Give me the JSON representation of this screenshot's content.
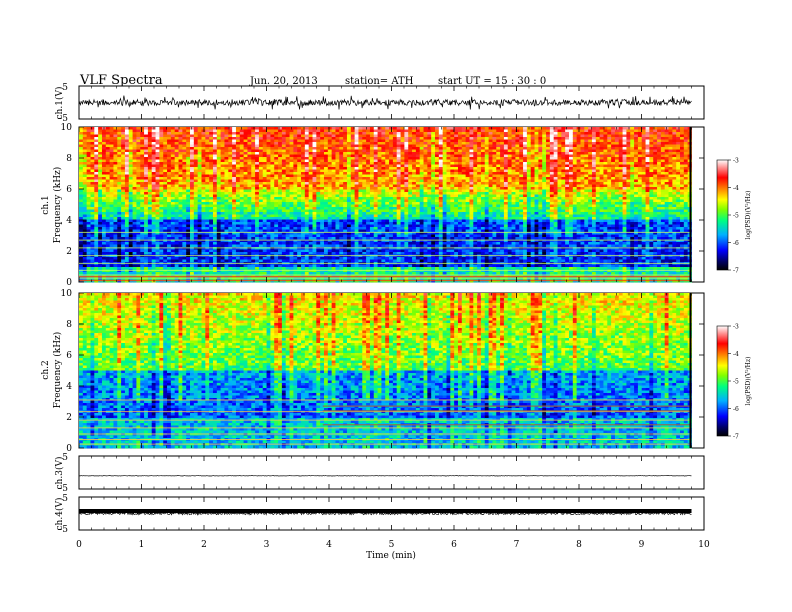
{
  "header": {
    "title": "VLF  Spectra",
    "date": "Jun. 20, 2013",
    "station": "station= ATH",
    "start": "start  UT  =    15 : 30 : 0"
  },
  "chart_data": [
    {
      "type": "line",
      "panel": "ch1-waveform",
      "ylabel": "ch.1(V)",
      "yticks": [
        "5",
        "-5"
      ],
      "ylim": [
        -5,
        5
      ],
      "xlim": [
        0,
        10
      ],
      "data_end_min": 9.8,
      "series": [
        {
          "values_estimate": "dense noise, roughly -2.5 to 2.5 V"
        }
      ]
    },
    {
      "type": "heatmap",
      "panel": "ch1-spectrogram",
      "ylabel_channel": "ch.1",
      "ylabel": "Frequency  (kHz)",
      "yticks": [
        "0",
        "2",
        "4",
        "6",
        "8",
        "10"
      ],
      "ylim": [
        0,
        10
      ],
      "xlim": [
        0,
        10
      ],
      "colorbar": {
        "label": "log(PSD)(V²/Hz)",
        "ticks": [
          "-3",
          "-4",
          "-5",
          "-6",
          "-7"
        ],
        "range": [
          -7,
          -3
        ]
      },
      "description_levels": {
        "0-1 kHz": -5.5,
        "1-4 kHz": -6.3,
        "4-6 kHz": -5.2,
        "6-10 kHz": -3.9
      }
    },
    {
      "type": "heatmap",
      "panel": "ch2-spectrogram",
      "ylabel_channel": "ch.2",
      "ylabel": "Frequency  (kHz)",
      "yticks": [
        "0",
        "2",
        "4",
        "6",
        "8",
        "10"
      ],
      "ylim": [
        0,
        10
      ],
      "xlim": [
        0,
        10
      ],
      "colorbar": {
        "label": "log(PSD)(V²/Hz)",
        "ticks": [
          "-3",
          "-4",
          "-5",
          "-6",
          "-7"
        ],
        "range": [
          -7,
          -3
        ]
      },
      "description_levels": {
        "0-2 kHz": -5.6,
        "2-5 kHz": -5.9,
        "5-10 kHz": -4.6
      }
    },
    {
      "type": "line",
      "panel": "ch3-waveform",
      "ylabel": "ch.3(V)",
      "yticks": [
        "5",
        "-5"
      ],
      "ylim": [
        -5,
        5
      ],
      "level": -1.0
    },
    {
      "type": "line",
      "panel": "ch4-waveform",
      "ylabel": "ch.4(V)",
      "yticks": [
        "5",
        "-5"
      ],
      "ylim": [
        -5,
        5
      ],
      "level": 0.0
    }
  ],
  "xaxis": {
    "label": "Time  (min)",
    "ticks": [
      "0",
      "1",
      "2",
      "3",
      "4",
      "5",
      "6",
      "7",
      "8",
      "9",
      "10"
    ]
  },
  "colors": {
    "colormap": [
      "#000000",
      "#000066",
      "#0000ff",
      "#00b0ff",
      "#00ff80",
      "#80ff00",
      "#ffff00",
      "#ff8000",
      "#ff0000",
      "#ffffff"
    ],
    "trace": "#000000"
  }
}
